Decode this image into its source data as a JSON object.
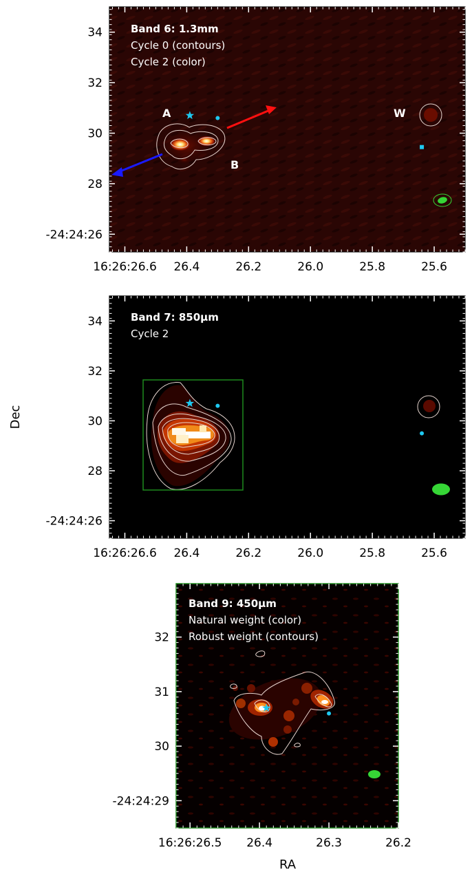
{
  "figure": {
    "ylabel": "Dec",
    "xlabel": "RA"
  },
  "colors": {
    "contour": "#e8d6d0",
    "beam": "#36d636",
    "box": "#1e8a1e",
    "marker": "#1ec8f0",
    "arrow_red": "#ff1010",
    "arrow_blue": "#1a1aff",
    "text": "#ffffff"
  },
  "chart_data": [
    {
      "type": "heatmap",
      "title_lines": [
        "Band 6: 1.3mm",
        "Cycle 0 (contours)",
        "Cycle 2 (color)"
      ],
      "colormap": "black-red-yellow-white (gist_heat)",
      "x_range": [
        26.65,
        25.5
      ],
      "y_range": [
        35.0,
        25.3
      ],
      "y_ticks": [
        26,
        28,
        30,
        32,
        34
      ],
      "y_tick_labels": [
        "-24:24:26",
        "28",
        "30",
        "32",
        "34"
      ],
      "x_ticks": [
        26.6,
        26.4,
        26.2,
        26.0,
        25.8,
        25.6
      ],
      "x_tick_labels": [
        "16:26:26.6",
        "26.4",
        "26.2",
        "26.0",
        "25.8",
        "25.6"
      ],
      "sources": [
        {
          "name": "A",
          "ra": 26.39,
          "dec": 30.7,
          "marker": "star"
        },
        {
          "name": "B",
          "ra": 26.3,
          "dec": 30.6,
          "marker": "dot"
        },
        {
          "name": "W",
          "ra": 25.64,
          "dec": 29.45,
          "marker": "square"
        }
      ],
      "labels": [
        {
          "text": "A",
          "ra": 26.43,
          "dec": 29.5
        },
        {
          "text": "B",
          "ra": 26.24,
          "dec": 32.0
        },
        {
          "text": "W",
          "ra": 25.72,
          "dec": 29.9
        }
      ],
      "arrows": [
        {
          "color": "red",
          "from": [
            26.23,
            30.2
          ],
          "to": [
            26.08,
            29.15
          ]
        },
        {
          "color": "blue",
          "from": [
            26.44,
            31.2
          ],
          "to": [
            26.64,
            32.0
          ]
        }
      ],
      "beam": {
        "ra": 25.6,
        "dec": 33.0
      }
    },
    {
      "type": "heatmap",
      "title_lines": [
        "Band 7: 850μm",
        "Cycle 2"
      ],
      "colormap": "black-red-yellow-white (gist_heat)",
      "x_range": [
        26.65,
        25.5
      ],
      "y_range": [
        35.0,
        25.3
      ],
      "y_ticks": [
        26,
        28,
        30,
        32,
        34
      ],
      "y_tick_labels": [
        "-24:24:26",
        "28",
        "30",
        "32",
        "34"
      ],
      "x_ticks": [
        26.6,
        26.4,
        26.2,
        26.0,
        25.8,
        25.6
      ],
      "x_tick_labels": [
        "16:26:26.6",
        "26.4",
        "26.2",
        "26.0",
        "25.8",
        "25.6"
      ],
      "sources": [
        {
          "name": "A",
          "ra": 26.39,
          "dec": 30.7,
          "marker": "star"
        },
        {
          "name": "B",
          "ra": 26.3,
          "dec": 30.6,
          "marker": "dot"
        },
        {
          "name": "W",
          "ra": 25.64,
          "dec": 29.5,
          "marker": "dot"
        }
      ],
      "zoom_box": {
        "ra": [
          26.52,
          26.2
        ],
        "dec": [
          28.5,
          33.0
        ]
      },
      "beam": {
        "ra": 25.6,
        "dec": 33.0
      }
    },
    {
      "type": "heatmap",
      "title_lines": [
        "Band 9: 450μm",
        "Natural weight (color)",
        "Robust weight (contours)"
      ],
      "colormap": "black-red-yellow-white (gist_heat)",
      "x_range": [
        26.52,
        26.2
      ],
      "y_range": [
        32.98,
        28.5
      ],
      "y_ticks": [
        29,
        30,
        31,
        32
      ],
      "y_tick_labels": [
        "-24:24:29",
        "30",
        "31",
        "32"
      ],
      "x_ticks": [
        26.5,
        26.4,
        26.3,
        26.2
      ],
      "x_tick_labels": [
        "16:26:26.5",
        "26.4",
        "26.3",
        "26.2"
      ],
      "sources": [
        {
          "name": "A",
          "ra": 26.39,
          "dec": 30.7,
          "marker": "star"
        },
        {
          "name": "B",
          "ra": 26.3,
          "dec": 30.6,
          "marker": "dot"
        }
      ],
      "beam": {
        "ra": 26.235,
        "dec": 32.0
      }
    }
  ]
}
